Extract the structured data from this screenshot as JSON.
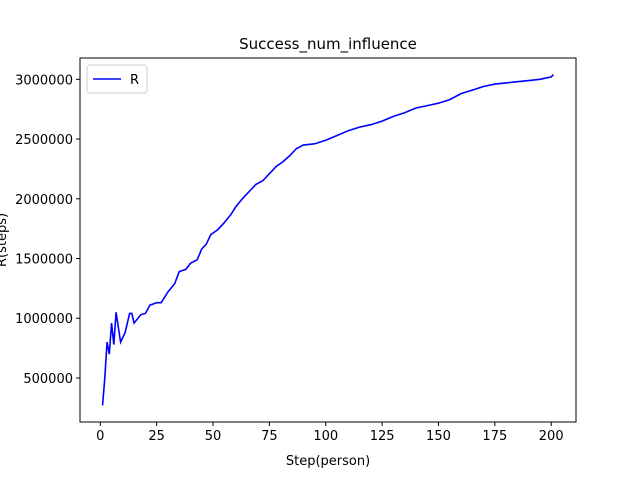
{
  "chart_data": {
    "type": "line",
    "title": "Success_num_influence",
    "x_label": "Step(person)",
    "y_label": "R(steps)",
    "x": [
      1,
      2,
      3,
      4,
      5,
      6,
      7,
      9,
      11,
      13,
      14,
      15,
      18,
      20,
      22,
      25,
      27,
      30,
      33,
      35,
      38,
      40,
      43,
      45,
      47,
      49,
      52,
      55,
      58,
      60,
      63,
      66,
      69,
      72,
      75,
      78,
      81,
      84,
      87,
      90,
      95,
      100,
      105,
      110,
      115,
      120,
      125,
      130,
      135,
      140,
      145,
      150,
      155,
      160,
      165,
      170,
      175,
      180,
      185,
      190,
      195,
      200,
      201
    ],
    "series": [
      {
        "name": "R",
        "color": "#0000ff",
        "values": [
          270000,
          500000,
          800000,
          700000,
          960000,
          780000,
          1050000,
          800000,
          880000,
          1040000,
          1040000,
          960000,
          1030000,
          1040000,
          1110000,
          1130000,
          1130000,
          1220000,
          1290000,
          1390000,
          1410000,
          1460000,
          1490000,
          1580000,
          1620000,
          1700000,
          1740000,
          1800000,
          1870000,
          1930000,
          2000000,
          2060000,
          2120000,
          2150000,
          2210000,
          2270000,
          2310000,
          2360000,
          2420000,
          2450000,
          2460000,
          2490000,
          2530000,
          2570000,
          2600000,
          2620000,
          2650000,
          2690000,
          2720000,
          2760000,
          2780000,
          2800000,
          2830000,
          2880000,
          2910000,
          2940000,
          2960000,
          2970000,
          2980000,
          2990000,
          3000000,
          3020000,
          3040000
        ]
      }
    ],
    "xlim": [
      -9,
      211
    ],
    "xticks": [
      0,
      25,
      50,
      75,
      100,
      125,
      150,
      175,
      200
    ],
    "ylim": [
      131500,
      3178500
    ],
    "yticks": [
      500000,
      1000000,
      1500000,
      2000000,
      2500000,
      3000000
    ],
    "legend": "upper left"
  }
}
